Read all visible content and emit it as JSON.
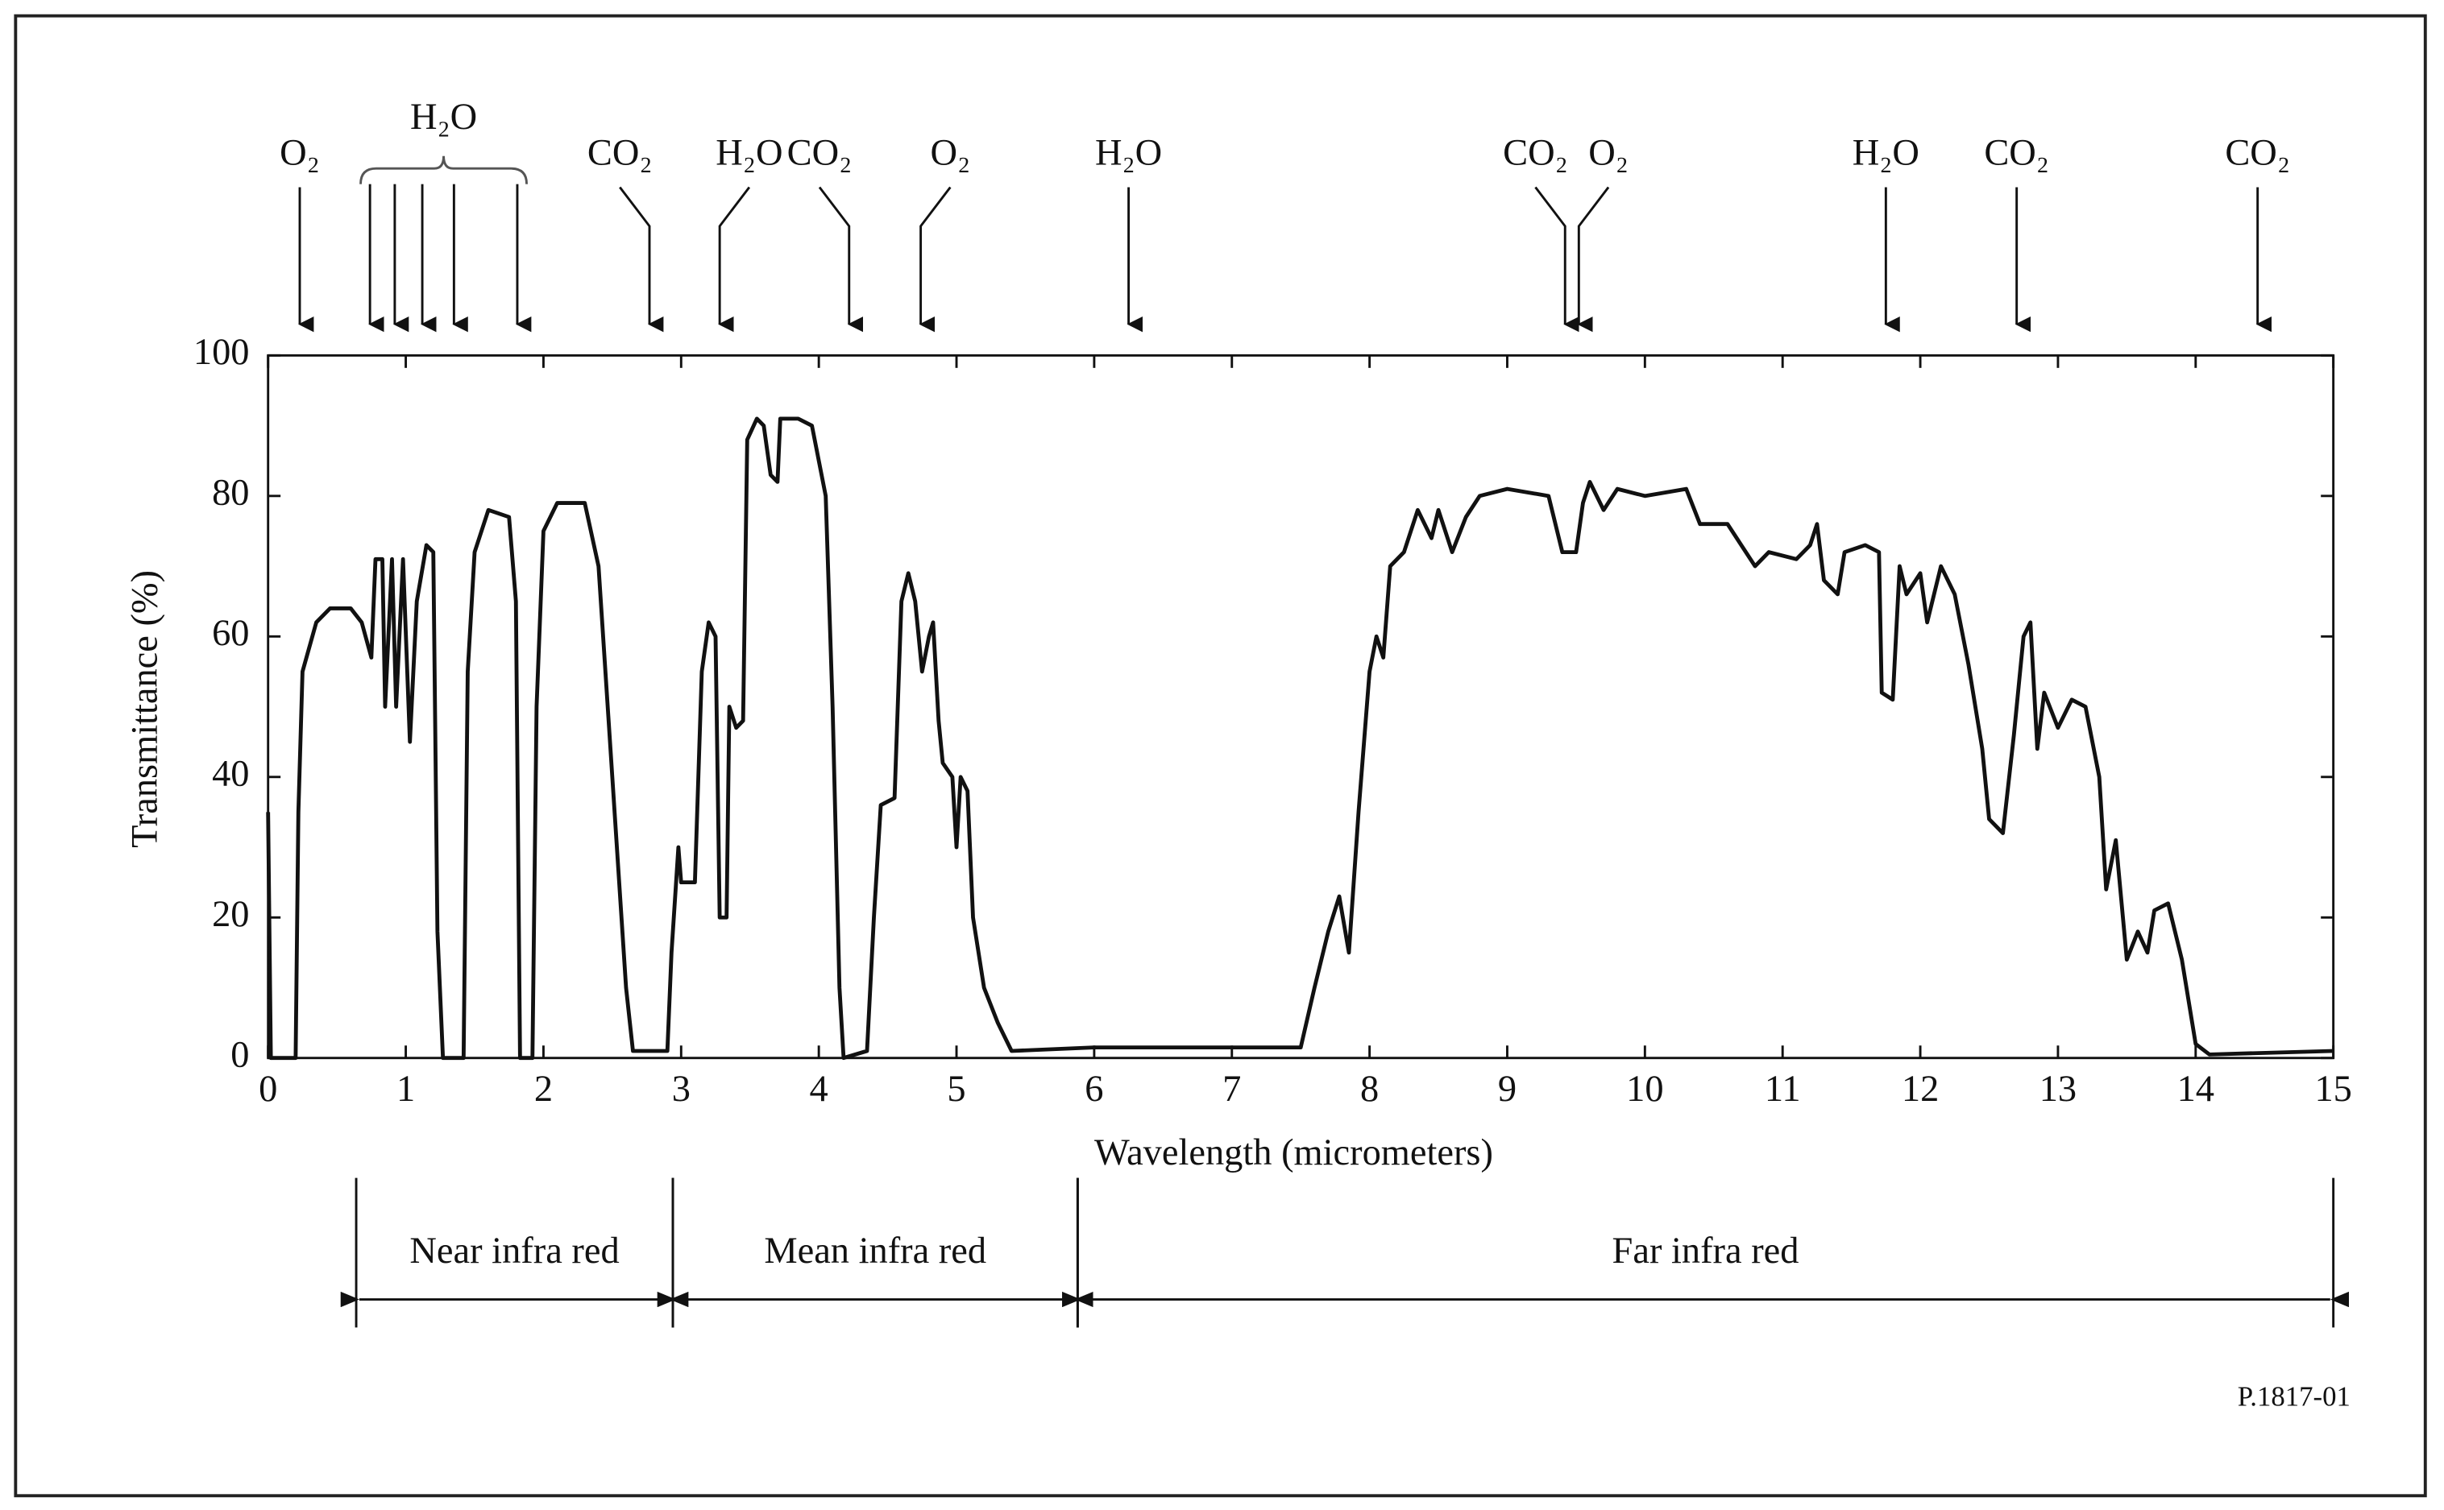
{
  "chart_data": {
    "type": "line",
    "x_label": "Wavelength (micrometers)",
    "y_label": "Transmittance (%)",
    "figure_id": "P.1817-01",
    "xlim": [
      0,
      15
    ],
    "ylim": [
      0,
      100
    ],
    "xticks": [
      0,
      1,
      2,
      3,
      4,
      5,
      6,
      7,
      8,
      9,
      10,
      11,
      12,
      13,
      14,
      15
    ],
    "yticks": [
      0,
      20,
      40,
      60,
      80,
      100
    ],
    "grid": false,
    "color": "#111111",
    "x": [
      0,
      0.02,
      0.2,
      0.22,
      0.25,
      0.35,
      0.45,
      0.6,
      0.68,
      0.75,
      0.78,
      0.83,
      0.85,
      0.9,
      0.93,
      0.98,
      1.03,
      1.08,
      1.15,
      1.2,
      1.23,
      1.27,
      1.42,
      1.45,
      1.5,
      1.6,
      1.75,
      1.8,
      1.83,
      1.92,
      1.95,
      2.0,
      2.1,
      2.3,
      2.4,
      2.5,
      2.6,
      2.65,
      2.9,
      2.93,
      2.98,
      3.0,
      3.1,
      3.15,
      3.2,
      3.25,
      3.28,
      3.33,
      3.35,
      3.4,
      3.45,
      3.48,
      3.55,
      3.6,
      3.65,
      3.7,
      3.72,
      3.85,
      3.95,
      4.05,
      4.1,
      4.15,
      4.18,
      4.35,
      4.4,
      4.45,
      4.55,
      4.6,
      4.65,
      4.7,
      4.75,
      4.8,
      4.83,
      4.87,
      4.9,
      4.97,
      5.0,
      5.03,
      5.08,
      5.12,
      5.2,
      5.3,
      5.4,
      6.0,
      7.5,
      7.6,
      7.7,
      7.78,
      7.85,
      7.92,
      8.0,
      8.05,
      8.1,
      8.15,
      8.25,
      8.35,
      8.45,
      8.5,
      8.6,
      8.7,
      8.8,
      9.0,
      9.3,
      9.4,
      9.5,
      9.55,
      9.6,
      9.7,
      9.8,
      10.0,
      10.3,
      10.4,
      10.6,
      10.7,
      10.8,
      10.9,
      11.1,
      11.2,
      11.25,
      11.3,
      11.4,
      11.45,
      11.6,
      11.7,
      11.72,
      11.8,
      11.85,
      11.9,
      12.0,
      12.05,
      12.15,
      12.25,
      12.35,
      12.45,
      12.5,
      12.6,
      12.68,
      12.75,
      12.8,
      12.85,
      12.9,
      13.0,
      13.1,
      13.2,
      13.3,
      13.35,
      13.42,
      13.5,
      13.58,
      13.65,
      13.7,
      13.8,
      13.9,
      14.0,
      14.1,
      15.0
    ],
    "values": [
      35,
      0,
      0,
      35,
      55,
      62,
      64,
      64,
      62,
      57,
      71,
      71,
      50,
      71,
      50,
      71,
      45,
      65,
      73,
      72,
      18,
      0,
      0,
      55,
      72,
      78,
      77,
      65,
      0,
      0,
      50,
      75,
      79,
      79,
      70,
      40,
      10,
      1,
      1,
      15,
      30,
      25,
      25,
      55,
      62,
      60,
      20,
      20,
      50,
      47,
      48,
      88,
      91,
      90,
      83,
      82,
      91,
      91,
      90,
      80,
      50,
      10,
      0,
      1,
      20,
      36,
      37,
      65,
      69,
      65,
      55,
      60,
      62,
      48,
      42,
      40,
      30,
      40,
      38,
      20,
      10,
      5,
      1,
      1.5,
      1.5,
      10,
      18,
      23,
      15,
      35,
      55,
      60,
      57,
      70,
      72,
      78,
      74,
      78,
      72,
      77,
      80,
      81,
      80,
      72,
      72,
      79,
      82,
      78,
      81,
      80,
      81,
      76,
      76,
      73,
      70,
      72,
      71,
      73,
      76,
      68,
      66,
      72,
      73,
      72,
      52,
      51,
      70,
      66,
      69,
      62,
      70,
      66,
      56,
      44,
      34,
      32,
      46,
      60,
      62,
      44,
      52,
      47,
      51,
      50,
      40,
      24,
      31,
      14,
      18,
      15,
      21,
      22,
      14,
      2,
      0.5,
      1
    ],
    "annotations": [
      {
        "label": "O₂",
        "x": [
          0.23
        ]
      },
      {
        "label": "H₂O",
        "x": [
          0.74,
          0.92,
          1.12,
          1.35,
          1.81
        ]
      },
      {
        "label": "CO₂",
        "x": [
          2.77
        ]
      },
      {
        "label": "H₂O",
        "x": [
          3.28
        ]
      },
      {
        "label": "CO₂",
        "x": [
          4.22
        ]
      },
      {
        "label": "O₂",
        "x": [
          4.74
        ]
      },
      {
        "label": "H₂O",
        "x": [
          6.25
        ]
      },
      {
        "label": "CO₂",
        "x": [
          9.42
        ]
      },
      {
        "label": "O₂",
        "x": [
          9.52
        ]
      },
      {
        "label": "H₂O",
        "x": [
          11.75
        ]
      },
      {
        "label": "CO₂",
        "x": [
          12.7
        ]
      },
      {
        "label": "CO₂",
        "x": [
          14.45
        ]
      }
    ],
    "bands": [
      {
        "label": "Near infra red",
        "start": 0.64,
        "end": 2.94
      },
      {
        "label": "Mean infra red",
        "start": 2.94,
        "end": 5.88
      },
      {
        "label": "Far infra red",
        "start": 5.88,
        "end": 15
      }
    ]
  }
}
